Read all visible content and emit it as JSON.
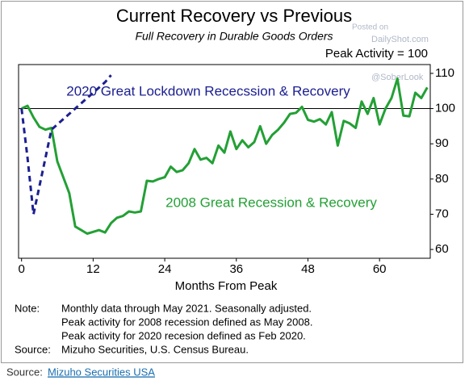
{
  "chart_data": {
    "type": "line",
    "title": "Current Recovery vs Previous",
    "subtitle": "Full Recovery in Durable Goods Orders",
    "note_top": "Peak Activity = 100",
    "watermark": [
      "Posted on",
      "DailyShot.com",
      "@SoberLook"
    ],
    "xlabel": "Months From Peak",
    "xlim": [
      -0.5,
      68.5
    ],
    "xticks": [
      0,
      12,
      24,
      36,
      48,
      60
    ],
    "ylim": [
      57.5,
      112.5
    ],
    "yticks": [
      60,
      70,
      80,
      90,
      100,
      110
    ],
    "reference_line": 100,
    "series": [
      {
        "name": "2008 Great Recession & Recovery",
        "color": "#23a035",
        "dashed": false,
        "x": [
          0,
          1,
          2,
          3,
          4,
          5,
          6,
          7,
          8,
          9,
          10,
          11,
          12,
          13,
          14,
          15,
          16,
          17,
          18,
          19,
          20,
          21,
          22,
          23,
          24,
          25,
          26,
          27,
          28,
          29,
          30,
          31,
          32,
          33,
          34,
          35,
          36,
          37,
          38,
          39,
          40,
          41,
          42,
          43,
          44,
          45,
          46,
          47,
          48,
          49,
          50,
          51,
          52,
          53,
          54,
          55,
          56,
          57,
          58,
          59,
          60,
          61,
          62,
          63,
          64,
          65,
          66,
          67,
          68
        ],
        "values": [
          100,
          100.8,
          97.5,
          94.8,
          94,
          94.5,
          85,
          80.5,
          76,
          66.5,
          65.5,
          64.5,
          65,
          65.5,
          64.8,
          67.5,
          69,
          69.5,
          70.8,
          70.5,
          70.8,
          79.5,
          79.3,
          80,
          80.5,
          83.5,
          82,
          82.5,
          84.5,
          88.5,
          85.5,
          86,
          84.5,
          89.5,
          87.5,
          93.5,
          88.5,
          91,
          89,
          90.5,
          95,
          90,
          92.5,
          94,
          96,
          98.5,
          98.8,
          100.5,
          96.8,
          96.3,
          97,
          95.5,
          99,
          89.5,
          96.5,
          95.8,
          94.5,
          102,
          98.5,
          103,
          95.5,
          100,
          103,
          108.5,
          98,
          97.8,
          104.5,
          103,
          106
        ]
      },
      {
        "name": "2020 Great Lockdown Rececssion & Recovery",
        "color": "#1c2090",
        "dashed": true,
        "x": [
          0,
          1,
          2,
          3,
          4,
          5,
          6,
          7,
          8,
          9,
          10,
          11,
          12,
          13,
          14,
          15
        ],
        "values": [
          100,
          86,
          70,
          78,
          86,
          94,
          95.5,
          97,
          98.5,
          100,
          101.5,
          103,
          104.5,
          106,
          107.5,
          109.5
        ]
      }
    ],
    "notes": [
      {
        "label": "Note:",
        "text": "Monthly data through May 2021. Seasonally adjusted."
      },
      {
        "label": null,
        "text": "Peak activity for 2008 recession defined as May 2008."
      },
      {
        "label": null,
        "text": "Peak activity for 2020 recesion defined as Feb 2020."
      },
      {
        "label": "Source:",
        "text": "Mizuho Securities, U.S. Census Bureau."
      }
    ]
  },
  "footer": {
    "label": "Source:",
    "link": "Mizuho Securities USA"
  }
}
